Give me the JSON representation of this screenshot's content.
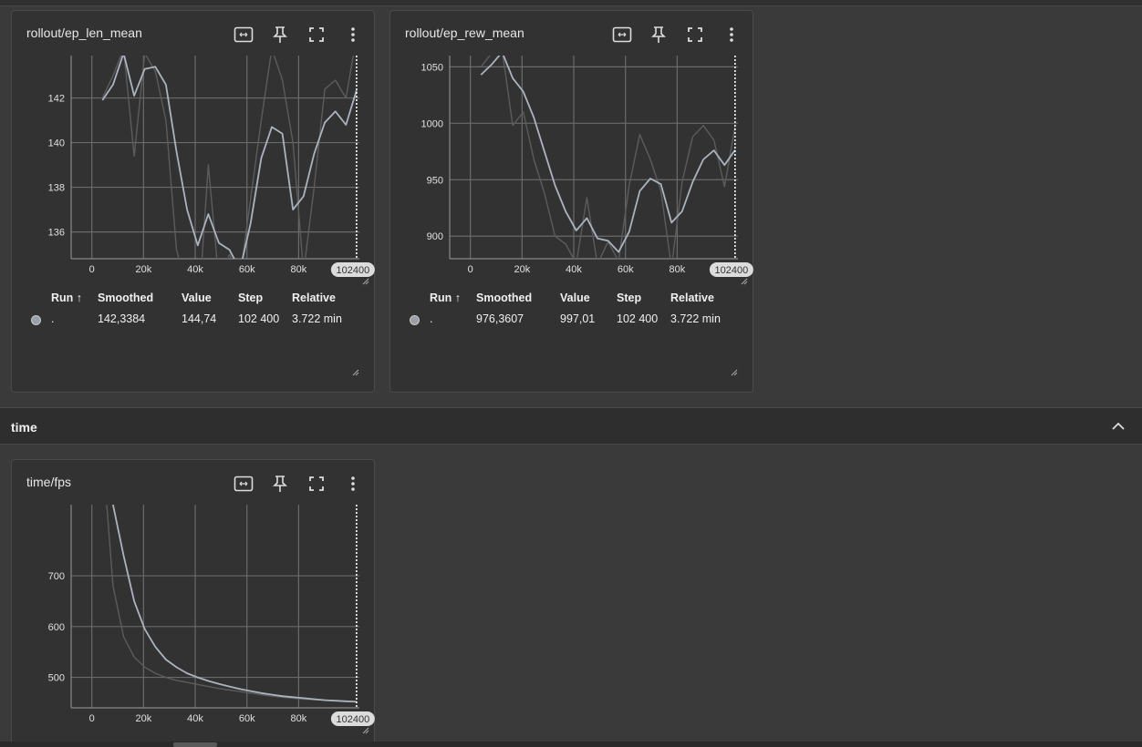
{
  "cards": [
    {
      "title": "rollout/ep_len_mean",
      "table": {
        "headers": {
          "run": "Run ↑",
          "smoothed": "Smoothed",
          "value": "Value",
          "step": "Step",
          "relative": "Relative"
        },
        "row": {
          "run": ".",
          "smoothed": "142,3384",
          "value": "144,74",
          "step": "102 400",
          "relative": "3.722 min"
        }
      }
    },
    {
      "title": "rollout/ep_rew_mean",
      "table": {
        "headers": {
          "run": "Run ↑",
          "smoothed": "Smoothed",
          "value": "Value",
          "step": "Step",
          "relative": "Relative"
        },
        "row": {
          "run": ".",
          "smoothed": "976,3607",
          "value": "997,01",
          "step": "102 400",
          "relative": "3.722 min"
        }
      }
    },
    {
      "title": "time/fps"
    }
  ],
  "section": {
    "title": "time"
  },
  "icons": [
    "fit-domain-icon",
    "pin-icon",
    "fullscreen-icon",
    "more-vert-icon",
    "expand-less-icon"
  ],
  "colors": {
    "smoothed": "#aab4c0",
    "raw": "#5c5c5c",
    "grid": "#6a6a6a"
  },
  "chart_data": [
    {
      "type": "line",
      "xlim": [
        -8000,
        103500
      ],
      "ylim": [
        134.8,
        143.9
      ],
      "xticks": [
        0,
        20000,
        40000,
        60000,
        80000
      ],
      "xtick_labels": [
        "0",
        "20k",
        "40k",
        "60k",
        "80k"
      ],
      "yticks": [
        136,
        138,
        140,
        142
      ],
      "ytick_labels": [
        "136",
        "138",
        "140",
        "142"
      ],
      "cursor": {
        "x": 102400,
        "label": "102400"
      },
      "series": [
        {
          "role": "raw",
          "x": [
            4096,
            8192,
            12288,
            16384,
            20480,
            24576,
            28672,
            32768,
            36864,
            40960,
            45056,
            49152,
            53248,
            57344,
            61440,
            65536,
            69632,
            73728,
            77824,
            81920,
            86016,
            90112,
            94208,
            98304,
            102400
          ],
          "values": [
            142.0,
            143.0,
            144.2,
            139.4,
            144.0,
            143.2,
            141.0,
            135.2,
            133.5,
            132.0,
            139.0,
            133.8,
            135.0,
            134.0,
            137.5,
            141.0,
            144.2,
            142.8,
            140.0,
            134.2,
            138.0,
            142.4,
            142.8,
            142.0,
            144.74
          ]
        },
        {
          "role": "smoothed",
          "x": [
            4096,
            8192,
            12288,
            16384,
            20480,
            24576,
            28672,
            32768,
            36864,
            40960,
            45056,
            49152,
            53248,
            57344,
            61440,
            65536,
            69632,
            73728,
            77824,
            81920,
            86016,
            90112,
            94208,
            98304,
            102400
          ],
          "values": [
            141.9,
            142.6,
            144.0,
            142.1,
            143.3,
            143.4,
            142.6,
            139.6,
            137.0,
            135.4,
            136.8,
            135.5,
            135.2,
            134.3,
            136.4,
            139.3,
            140.7,
            140.4,
            137.0,
            137.6,
            139.5,
            140.9,
            141.4,
            140.8,
            142.34
          ]
        }
      ]
    },
    {
      "type": "line",
      "xlim": [
        -8000,
        103500
      ],
      "ylim": [
        880,
        1060
      ],
      "xticks": [
        0,
        20000,
        40000,
        60000,
        80000
      ],
      "xtick_labels": [
        "0",
        "20k",
        "40k",
        "60k",
        "80k"
      ],
      "yticks": [
        900,
        950,
        1000,
        1050
      ],
      "ytick_labels": [
        "900",
        "950",
        "1000",
        "1050"
      ],
      "cursor": {
        "x": 102400,
        "label": "102400"
      },
      "series": [
        {
          "role": "raw",
          "x": [
            4096,
            8192,
            12288,
            16384,
            20480,
            24576,
            28672,
            32768,
            36864,
            40960,
            45056,
            49152,
            53248,
            57344,
            61440,
            65536,
            69632,
            73728,
            77824,
            81920,
            86016,
            90112,
            94208,
            98304,
            102400
          ],
          "values": [
            1050,
            1062,
            1065,
            998,
            1010,
            968,
            938,
            900,
            893,
            876,
            934,
            875,
            895,
            878,
            945,
            990,
            968,
            940,
            872,
            948,
            988,
            998,
            985,
            944,
            997.01
          ]
        },
        {
          "role": "smoothed",
          "x": [
            4096,
            8192,
            12288,
            16384,
            20480,
            24576,
            28672,
            32768,
            36864,
            40960,
            45056,
            49152,
            53248,
            57344,
            61440,
            65536,
            69632,
            73728,
            77824,
            81920,
            86016,
            90112,
            94208,
            98304,
            102400
          ],
          "values": [
            1043,
            1052,
            1063,
            1040,
            1028,
            1005,
            975,
            945,
            922,
            905,
            916,
            898,
            896,
            886,
            904,
            940,
            951,
            946,
            912,
            922,
            948,
            968,
            976,
            963,
            976.36
          ]
        }
      ]
    },
    {
      "type": "line",
      "xlim": [
        -8000,
        103500
      ],
      "ylim": [
        440,
        840
      ],
      "xticks": [
        0,
        20000,
        40000,
        60000,
        80000
      ],
      "xtick_labels": [
        "0",
        "20k",
        "40k",
        "60k",
        "80k"
      ],
      "yticks": [
        500,
        600,
        700
      ],
      "ytick_labels": [
        "500",
        "600",
        "700"
      ],
      "cursor": {
        "x": 102400,
        "label": "102400"
      },
      "series": [
        {
          "role": "raw",
          "x": [
            4096,
            8192,
            12288,
            16384,
            20480,
            24576,
            28672,
            32768,
            36864,
            40960,
            45056,
            49152,
            53248,
            57344,
            61440,
            65536,
            69632,
            73728,
            77824,
            81920,
            86016,
            90112,
            94208,
            98304,
            102400
          ],
          "values": [
            950,
            680,
            580,
            540,
            520,
            508,
            500,
            494,
            490,
            486,
            482,
            478,
            475,
            472,
            469,
            466,
            463,
            461,
            459,
            457,
            456,
            455,
            454,
            453,
            452
          ]
        },
        {
          "role": "smoothed",
          "x": [
            8192,
            12288,
            16384,
            20480,
            24576,
            28672,
            32768,
            36864,
            40960,
            45056,
            49152,
            53248,
            57344,
            61440,
            65536,
            69632,
            73728,
            77824,
            81920,
            86016,
            90112,
            94208,
            98304,
            102400
          ],
          "values": [
            840,
            740,
            650,
            595,
            560,
            535,
            520,
            508,
            500,
            493,
            487,
            482,
            477,
            473,
            469,
            466,
            463,
            461,
            459,
            457,
            455,
            454,
            453,
            452
          ]
        }
      ]
    }
  ]
}
